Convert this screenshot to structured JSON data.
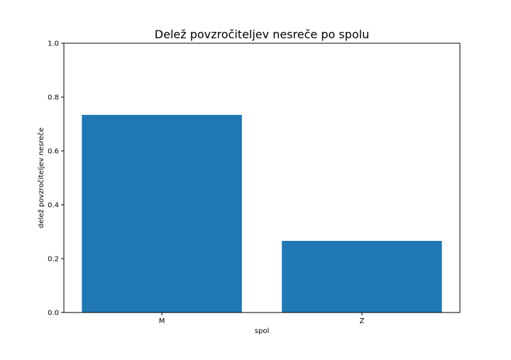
{
  "chart_data": {
    "type": "bar",
    "title": "Delež povzročiteljev nesreče po spolu",
    "xlabel": "spol",
    "ylabel": "delež povzročiteljev nesreče",
    "categories": [
      "M",
      "Z"
    ],
    "values": [
      0.734,
      0.266
    ],
    "ylim": [
      0,
      1.0
    ],
    "yticks": [
      "0.0",
      "0.2",
      "0.4",
      "0.6",
      "0.8",
      "1.0"
    ],
    "bar_color": "#1f77b4",
    "grid": false,
    "legend": "none"
  }
}
